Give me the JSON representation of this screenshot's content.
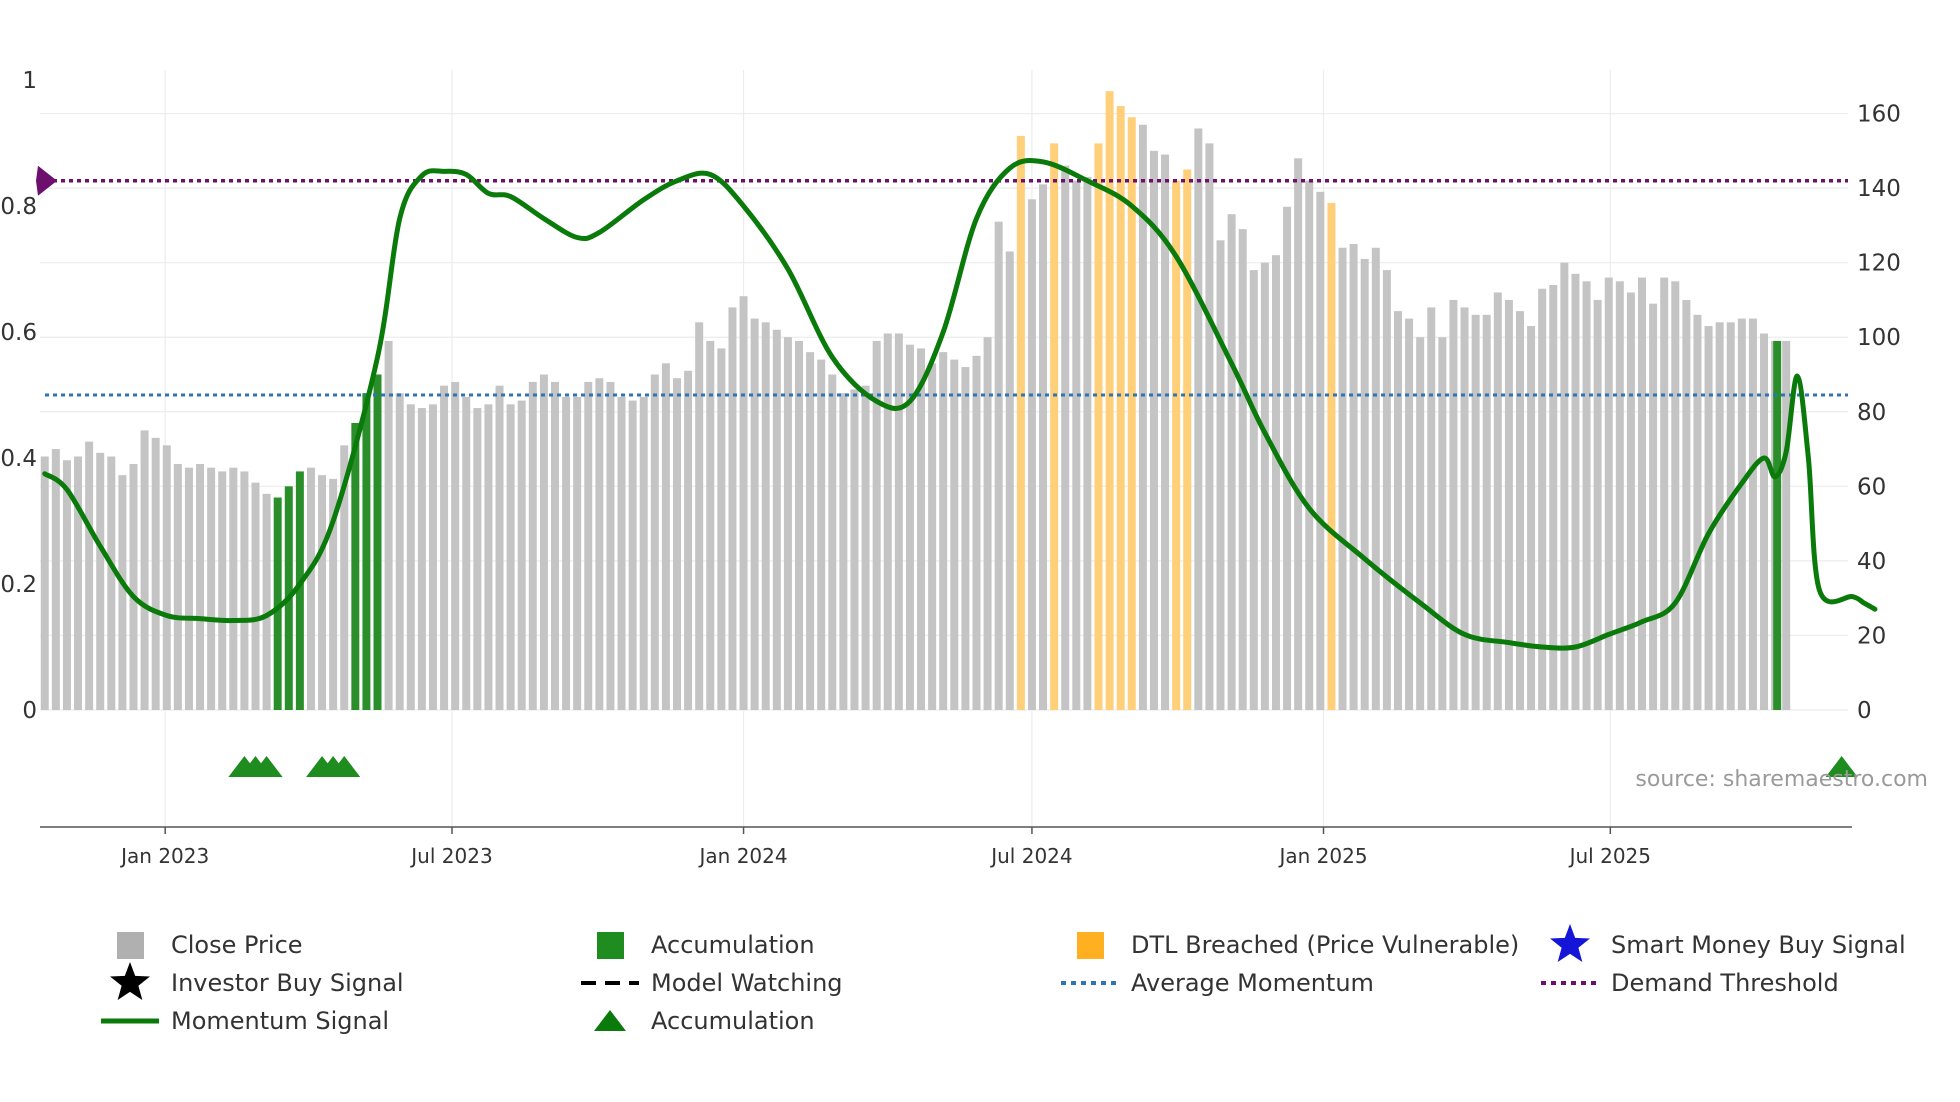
{
  "chart_data": {
    "type": "bar",
    "title": "",
    "left_axis": {
      "range": [
        0,
        1
      ],
      "ticks": [
        0,
        0.2,
        0.4,
        0.6,
        0.8,
        1
      ],
      "tick_labels": [
        "0",
        "0.2",
        "0.4",
        "0.6",
        "0.8",
        "1"
      ]
    },
    "right_axis": {
      "range": [
        0,
        169
      ],
      "ticks": [
        0,
        20,
        40,
        60,
        80,
        100,
        120,
        140,
        160
      ],
      "tick_labels": [
        "0",
        "20",
        "40",
        "60",
        "80",
        "100",
        "120",
        "140",
        "160"
      ]
    },
    "x_axis": {
      "start": "2022-10-14",
      "end": "2025-11-28",
      "ticks": [
        "2023-01-01",
        "2023-07-01",
        "2024-01-01",
        "2024-07-01",
        "2025-01-01",
        "2025-07-01"
      ],
      "tick_labels": [
        "Jan 2023",
        "Jul 2023",
        "Jan 2024",
        "Jul 2024",
        "Jan 2025",
        "Jul 2025"
      ]
    },
    "weekly_start": "2022-10-17",
    "close_price": [
      68,
      70,
      67,
      68,
      72,
      69,
      68,
      63,
      66,
      75,
      73,
      71,
      66,
      65,
      66,
      65,
      64,
      65,
      64,
      61,
      58,
      57,
      60,
      64,
      65,
      63,
      62,
      71,
      77,
      85,
      90,
      99,
      85,
      82,
      81,
      82,
      87,
      88,
      84,
      81,
      82,
      87,
      82,
      83,
      88,
      90,
      88,
      84,
      84,
      88,
      89,
      88,
      84,
      83,
      84,
      90,
      93,
      89,
      91,
      104,
      99,
      97,
      108,
      111,
      105,
      104,
      102,
      100,
      99,
      96,
      94,
      90,
      85,
      86,
      87,
      99,
      101,
      101,
      98,
      97,
      93,
      96,
      94,
      92,
      95,
      100,
      131,
      123,
      154,
      137,
      141,
      152,
      146,
      142,
      143,
      152,
      166,
      162,
      159,
      157,
      150,
      149,
      142,
      145,
      156,
      152,
      126,
      133,
      129,
      118,
      120,
      122,
      135,
      148,
      142,
      139,
      136,
      124,
      125,
      121,
      124,
      118,
      107,
      105,
      100,
      108,
      100,
      110,
      108,
      106,
      106,
      112,
      110,
      107,
      103,
      113,
      114,
      120,
      117,
      115,
      110,
      116,
      115,
      112,
      116,
      109,
      116,
      115,
      110,
      106,
      103,
      104,
      104,
      105,
      105,
      101,
      99,
      99
    ],
    "accumulation_weeks": [
      21,
      22,
      23,
      28,
      29,
      30
    ],
    "dtl_breached_weeks": [
      88,
      91,
      95,
      96,
      97,
      98,
      102,
      103,
      116
    ],
    "momentum_signal": [
      0.375,
      0.35,
      0.26,
      0.18,
      0.15,
      0.145,
      0.142,
      0.15,
      0.2,
      0.3,
      0.56,
      0.78,
      0.848,
      0.855,
      0.85,
      0.82,
      0.815,
      0.78,
      0.75,
      0.758,
      0.81,
      0.84,
      0.85,
      0.8,
      0.7,
      0.56,
      0.49,
      0.49,
      0.6,
      0.78,
      0.86,
      0.87,
      0.84,
      0.8,
      0.72,
      0.55,
      0.44,
      0.32,
      0.24,
      0.17,
      0.12,
      0.107,
      0.1,
      0.1,
      0.12,
      0.14,
      0.17,
      0.28,
      0.36,
      0.4,
      0.37,
      0.41,
      0.53,
      0.4,
      0.19,
      0.18,
      0.17,
      0.16
    ],
    "momentum_signal_weeks": [
      0,
      2,
      5,
      8,
      11,
      14,
      17,
      20,
      23,
      26,
      30,
      32,
      34,
      36,
      38,
      40,
      42,
      45,
      48,
      50,
      54,
      57,
      60,
      63,
      67,
      71,
      75,
      78,
      81,
      84,
      87,
      90,
      94,
      98,
      102,
      107,
      110,
      114,
      119,
      124,
      128,
      132,
      135,
      138,
      141,
      144,
      147,
      150,
      153,
      155,
      156,
      157,
      158,
      159,
      160,
      163,
      164,
      165
    ],
    "average_momentum": 0.5,
    "demand_threshold": 0.84,
    "accumulation_markers": [
      "2023-02-20",
      "2023-02-27",
      "2023-03-06",
      "2023-04-10",
      "2023-04-17",
      "2023-04-24",
      "2025-11-24"
    ],
    "source_text": "source: sharemaestro.com",
    "legend": [
      {
        "label": "Close Price",
        "symbol": "square",
        "color": "#b0b0b0"
      },
      {
        "label": "Accumulation",
        "symbol": "square",
        "color": "#1e8c1e"
      },
      {
        "label": "DTL Breached (Price Vulnerable)",
        "symbol": "square",
        "color": "#ffb020"
      },
      {
        "label": "Smart Money Buy Signal",
        "symbol": "star",
        "color": "#1515d8"
      },
      {
        "label": "Investor Buy Signal",
        "symbol": "star",
        "color": "#000000"
      },
      {
        "label": "Model Watching",
        "symbol": "dash",
        "color": "#000000"
      },
      {
        "label": "Average Momentum",
        "symbol": "dot",
        "color": "#2e75b6"
      },
      {
        "label": "Demand Threshold",
        "symbol": "dot",
        "color": "#6d0f6d"
      },
      {
        "label": "Momentum Signal",
        "symbol": "line",
        "color": "#0a7a0a"
      },
      {
        "label": "Accumulation",
        "symbol": "triangle",
        "color": "#0a7a0a"
      }
    ]
  },
  "colors": {
    "close_price": "#c4c4c4",
    "accumulation": "#2a8f2a",
    "dtl": "#ffcf7a",
    "momentum": "#0a7a0a",
    "average": "#2e75b6",
    "threshold": "#6d0f6d",
    "marker": "#1e8c1e",
    "grid": "#ececec",
    "axis_text": "#333333",
    "source": "#9a9a9a"
  }
}
